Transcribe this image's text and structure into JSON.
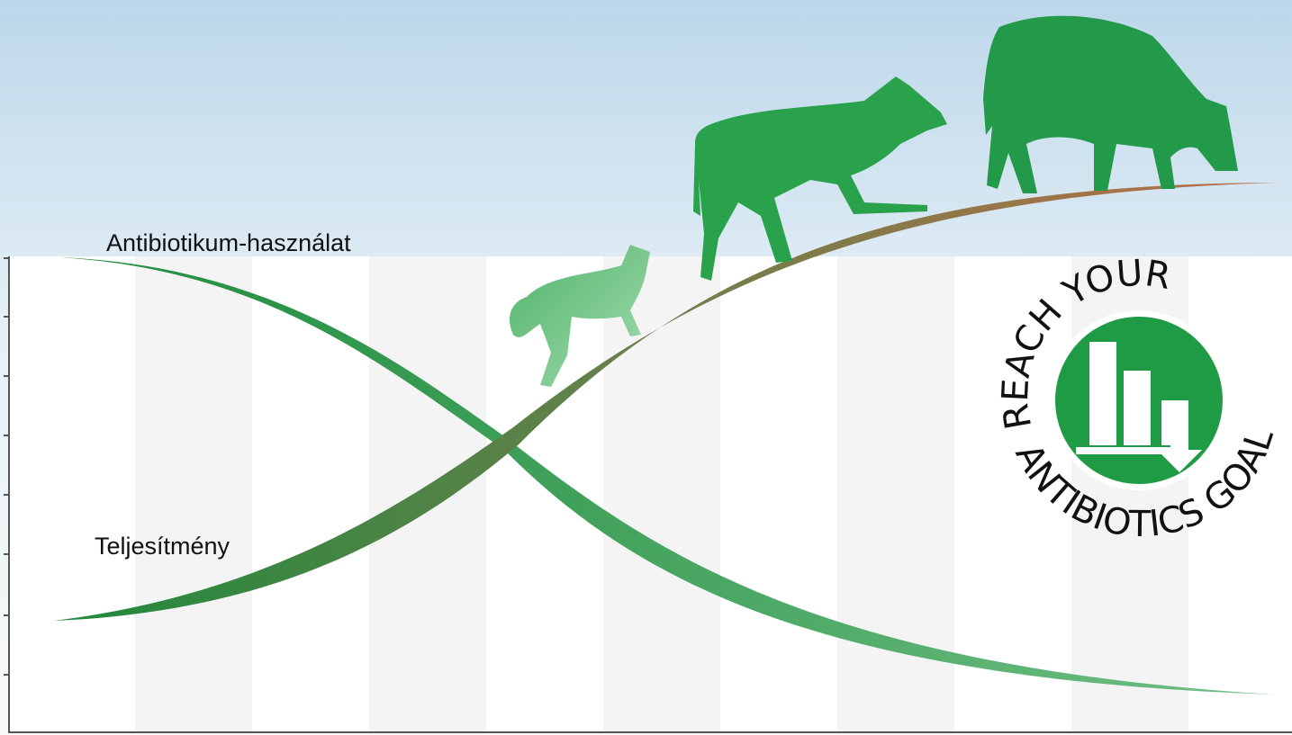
{
  "labels": {
    "antibiotic_use": "Antibiotikum-használat",
    "performance": "Teljesítmény"
  },
  "logo": {
    "top": "REACH YOUR",
    "bottom": "ANTIBIOTICS GOAL"
  }
}
